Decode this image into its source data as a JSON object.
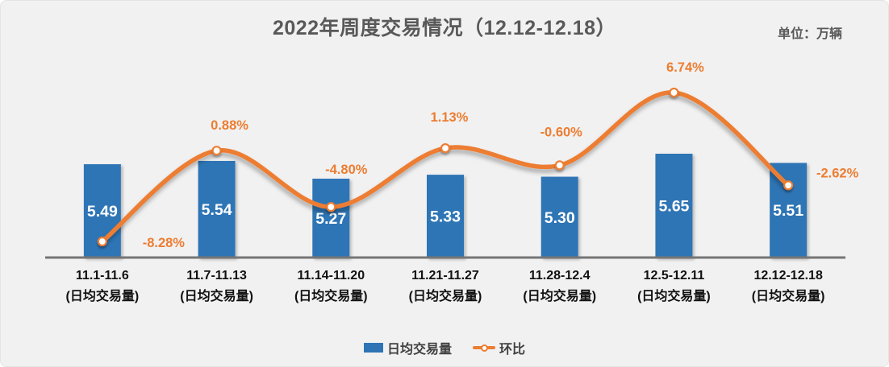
{
  "header": {
    "title": "2022年周度交易情况（12.12-12.18）",
    "unit_label": "单位：万辆"
  },
  "legend": {
    "bar_label": "日均交易量",
    "line_label": "环比"
  },
  "colors": {
    "background": "#F1F1F1",
    "bar": "#2E74B5",
    "line": "#ED7D31",
    "percent_label": "#ED7D31",
    "bar_value_label": "#FFFFFF",
    "title": "#595959",
    "axis": "#757575",
    "category_label": "#111111"
  },
  "chart_data": {
    "type": "combo",
    "title": "2022年周度交易情况（12.12-12.18）",
    "unit": "万辆",
    "grid": false,
    "legend_position": "bottom",
    "categories": [
      "11.1-11.6",
      "11.7-11.13",
      "11.14-11.20",
      "11.21-11.27",
      "11.28-12.4",
      "12.5-12.11",
      "12.12-12.18"
    ],
    "category_sublabel": "(日均交易量)",
    "series": [
      {
        "name": "日均交易量",
        "type": "bar",
        "values": [
          5.49,
          5.54,
          5.27,
          5.33,
          5.3,
          5.65,
          5.51
        ],
        "labels": [
          "5.49",
          "5.54",
          "5.27",
          "5.33",
          "5.30",
          "5.65",
          "5.51"
        ]
      },
      {
        "name": "环比",
        "type": "line",
        "values": [
          -8.28,
          0.88,
          -4.8,
          1.13,
          -0.6,
          6.74,
          -2.62
        ],
        "labels": [
          "-8.28%",
          "0.88%",
          "-4.80%",
          "1.13%",
          "-0.60%",
          "6.74%",
          "-2.62%"
        ]
      }
    ]
  }
}
